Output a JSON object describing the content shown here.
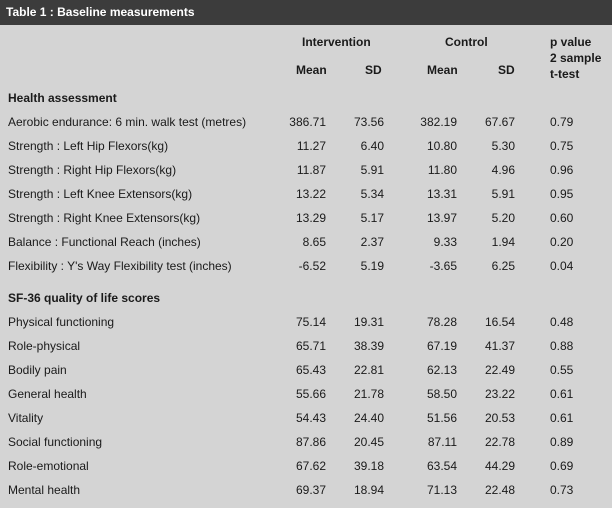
{
  "title": "Table 1 : Baseline measurements",
  "header": {
    "group1": "Intervention",
    "group2": "Control",
    "pvalue_lines": [
      "p value",
      "2 sample",
      "t-test"
    ],
    "mean": "Mean",
    "sd": "SD"
  },
  "sections": [
    {
      "title": "Health assessment",
      "rows": [
        {
          "label": "Aerobic endurance: 6 min. walk test (metres)",
          "i_mean": "386.71",
          "i_sd": "73.56",
          "c_mean": "382.19",
          "c_sd": "67.67",
          "p": "0.79"
        },
        {
          "label": "Strength : Left Hip Flexors(kg)",
          "i_mean": "11.27",
          "i_sd": "6.40",
          "c_mean": "10.80",
          "c_sd": "5.30",
          "p": "0.75"
        },
        {
          "label": "Strength : Right Hip Flexors(kg)",
          "i_mean": "11.87",
          "i_sd": "5.91",
          "c_mean": "11.80",
          "c_sd": "4.96",
          "p": "0.96"
        },
        {
          "label": "Strength : Left Knee Extensors(kg)",
          "i_mean": "13.22",
          "i_sd": "5.34",
          "c_mean": "13.31",
          "c_sd": "5.91",
          "p": "0.95"
        },
        {
          "label": "Strength : Right Knee Extensors(kg)",
          "i_mean": "13.29",
          "i_sd": "5.17",
          "c_mean": "13.97",
          "c_sd": "5.20",
          "p": "0.60"
        },
        {
          "label": "Balance : Functional Reach (inches)",
          "i_mean": "8.65",
          "i_sd": "2.37",
          "c_mean": "9.33",
          "c_sd": "1.94",
          "p": "0.20"
        },
        {
          "label": "Flexibility : Y's Way Flexibility test (inches)",
          "i_mean": "-6.52",
          "i_sd": "5.19",
          "c_mean": "-3.65",
          "c_sd": "6.25",
          "p": "0.04"
        }
      ]
    },
    {
      "title": "SF-36 quality of life scores",
      "rows": [
        {
          "label": "Physical functioning",
          "i_mean": "75.14",
          "i_sd": "19.31",
          "c_mean": "78.28",
          "c_sd": "16.54",
          "p": "0.48"
        },
        {
          "label": "Role-physical",
          "i_mean": "65.71",
          "i_sd": "38.39",
          "c_mean": "67.19",
          "c_sd": "41.37",
          "p": "0.88"
        },
        {
          "label": "Bodily pain",
          "i_mean": "65.43",
          "i_sd": "22.81",
          "c_mean": "62.13",
          "c_sd": "22.49",
          "p": "0.55"
        },
        {
          "label": "General health",
          "i_mean": "55.66",
          "i_sd": "21.78",
          "c_mean": "58.50",
          "c_sd": "23.22",
          "p": "0.61"
        },
        {
          "label": "Vitality",
          "i_mean": "54.43",
          "i_sd": "24.40",
          "c_mean": "51.56",
          "c_sd": "20.53",
          "p": "0.61"
        },
        {
          "label": "Social functioning",
          "i_mean": "87.86",
          "i_sd": "20.45",
          "c_mean": "87.11",
          "c_sd": "22.78",
          "p": "0.89"
        },
        {
          "label": "Role-emotional",
          "i_mean": "67.62",
          "i_sd": "39.18",
          "c_mean": "63.54",
          "c_sd": "44.29",
          "p": "0.69"
        },
        {
          "label": "Mental health",
          "i_mean": "69.37",
          "i_sd": "18.94",
          "c_mean": "71.13",
          "c_sd": "22.48",
          "p": "0.73"
        }
      ]
    }
  ]
}
